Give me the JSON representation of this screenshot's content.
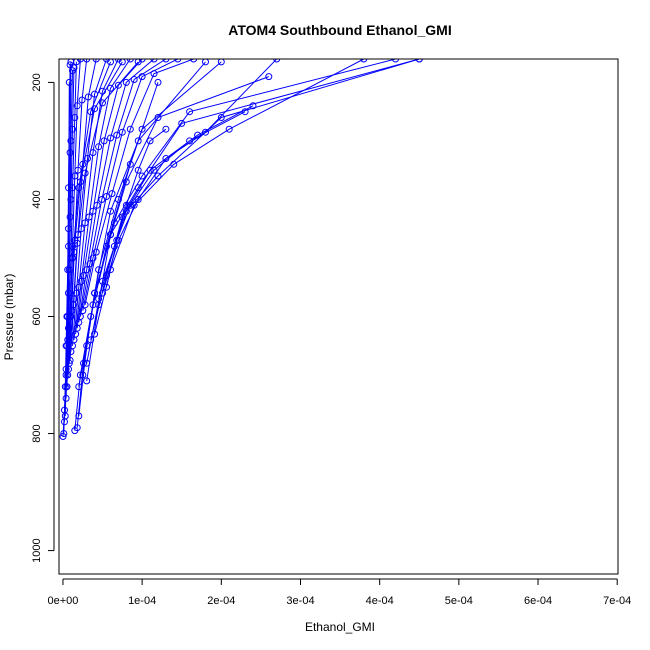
{
  "chart_data": {
    "type": "line",
    "title": "ATOM4 Southbound Ethanol_GMI",
    "xlabel": "Ethanol_GMI",
    "ylabel": "Pressure (mbar)",
    "xlim": [
      -5e-06,
      0.000701
    ],
    "ylim": [
      1040,
      160
    ],
    "y_reversed": true,
    "markers": "open-circle",
    "grid": false,
    "legend": "none",
    "series_color": "#0000ff",
    "x_ticks": [
      0,
      0.0001,
      0.0002,
      0.0003,
      0.0004,
      0.0005,
      0.0006,
      0.0007
    ],
    "x_tick_labels": [
      "0e+00",
      "1e-04",
      "2e-04",
      "3e-04",
      "4e-04",
      "5e-04",
      "6e-04",
      "7e-04"
    ],
    "y_ticks": [
      200,
      400,
      600,
      800,
      1000
    ],
    "y_tick_labels": [
      "200",
      "400",
      "600",
      "800",
      "1000"
    ],
    "series": [
      {
        "x": [
          0.0,
          2e-06,
          4e-06,
          5e-06,
          7e-06,
          8e-06
        ],
        "y": [
          805,
          760,
          700,
          600,
          450,
          200
        ]
      },
      {
        "x": [
          1e-06,
          3e-06,
          4e-06,
          6e-06,
          7e-06,
          9e-06
        ],
        "y": [
          800,
          720,
          650,
          520,
          380,
          170
        ]
      },
      {
        "x": [
          2e-06,
          4e-06,
          6e-06,
          7e-06,
          9e-06,
          1e-05
        ],
        "y": [
          780,
          690,
          600,
          480,
          320,
          165
        ]
      },
      {
        "x": [
          3e-06,
          5e-06,
          7e-06,
          9e-06,
          1e-05,
          1.2e-05
        ],
        "y": [
          770,
          650,
          560,
          430,
          300,
          180
        ]
      },
      {
        "x": [
          4e-06,
          6e-06,
          8e-06,
          1e-05,
          1.2e-05,
          1.4e-05
        ],
        "y": [
          740,
          640,
          520,
          400,
          280,
          175
        ]
      },
      {
        "x": [
          5e-06,
          7e-06,
          1e-05,
          1.2e-05,
          1.5e-05,
          1.7e-05
        ],
        "y": [
          720,
          620,
          500,
          380,
          260,
          165
        ]
      },
      {
        "x": [
          6e-06,
          9e-06,
          1.2e-05,
          1.5e-05,
          1.8e-05,
          2.2e-05
        ],
        "y": [
          700,
          600,
          480,
          360,
          240,
          160
        ]
      },
      {
        "x": [
          8e-06,
          1.1e-05,
          1.5e-05,
          1.9e-05,
          2.4e-05,
          3e-05
        ],
        "y": [
          680,
          590,
          470,
          350,
          230,
          160
        ]
      },
      {
        "x": [
          1e-05,
          1.4e-05,
          1.9e-05,
          2.5e-05,
          3.2e-05,
          4.2e-05
        ],
        "y": [
          660,
          570,
          460,
          340,
          225,
          160
        ]
      },
      {
        "x": [
          1.2e-05,
          1.7e-05,
          2.3e-05,
          3.1e-05,
          4e-05,
          5.5e-05
        ],
        "y": [
          650,
          560,
          450,
          330,
          220,
          160
        ]
      },
      {
        "x": [
          1.4e-05,
          2e-05,
          2.8e-05,
          3.8e-05,
          5e-05,
          7e-05
        ],
        "y": [
          640,
          550,
          440,
          320,
          215,
          160
        ]
      },
      {
        "x": [
          1.6e-05,
          2.3e-05,
          3.3e-05,
          4.5e-05,
          6e-05,
          8.5e-05
        ],
        "y": [
          630,
          540,
          430,
          310,
          210,
          160
        ]
      },
      {
        "x": [
          1.8e-05,
          2.6e-05,
          3.8e-05,
          5.2e-05,
          7e-05,
          0.0001
        ],
        "y": [
          620,
          530,
          420,
          300,
          205,
          160
        ]
      },
      {
        "x": [
          2e-05,
          3e-05,
          4.3e-05,
          6e-05,
          8e-05,
          0.000115
        ],
        "y": [
          610,
          520,
          410,
          295,
          200,
          160
        ]
      },
      {
        "x": [
          2.2e-05,
          3.4e-05,
          4.9e-05,
          6.8e-05,
          9e-05,
          0.00013
        ],
        "y": [
          600,
          510,
          400,
          290,
          195,
          160
        ]
      },
      {
        "x": [
          2.5e-05,
          3.8e-05,
          5.5e-05,
          7.5e-05,
          0.0001,
          0.000145
        ],
        "y": [
          590,
          500,
          395,
          285,
          190,
          160
        ]
      },
      {
        "x": [
          2.8e-05,
          4.2e-05,
          6.2e-05,
          8.5e-05,
          0.000115,
          0.000165
        ],
        "y": [
          580,
          490,
          390,
          280,
          185,
          160
        ]
      },
      {
        "x": [
          1.8e-05,
          2.6e-05,
          4e-05,
          6e-05,
          9.5e-05,
          0.00018
        ],
        "y": [
          790,
          680,
          560,
          420,
          300,
          165
        ]
      },
      {
        "x": [
          1.5e-05,
          2.2e-05,
          3.5e-05,
          5.5e-05,
          8.5e-05,
          0.00012
        ],
        "y": [
          795,
          700,
          600,
          480,
          340,
          200
        ]
      },
      {
        "x": [
          2e-05,
          3e-05,
          4.5e-05,
          7e-05,
          0.0001,
          0.0002
        ],
        "y": [
          770,
          650,
          520,
          400,
          280,
          165
        ]
      },
      {
        "x": [
          3e-05,
          4.5e-05,
          6e-05,
          8e-05,
          0.00012,
          0.00026
        ],
        "y": [
          710,
          580,
          460,
          370,
          260,
          190
        ]
      },
      {
        "x": [
          2.5e-05,
          4e-05,
          6.5e-05,
          0.0001,
          0.00016,
          0.00042
        ],
        "y": [
          700,
          560,
          440,
          360,
          250,
          160
        ]
      },
      {
        "x": [
          2e-05,
          3.8e-05,
          6e-05,
          9.5e-05,
          0.00015,
          0.00045
        ],
        "y": [
          720,
          580,
          460,
          380,
          270,
          160
        ]
      },
      {
        "x": [
          3e-05,
          5e-05,
          8e-05,
          0.00012,
          0.0002,
          0.00045
        ],
        "y": [
          680,
          540,
          420,
          360,
          260,
          160
        ]
      },
      {
        "x": [
          4e-05,
          6e-05,
          9e-05,
          0.00014,
          0.00021,
          0.00038
        ],
        "y": [
          630,
          520,
          410,
          340,
          280,
          160
        ]
      },
      {
        "x": [
          3.5e-05,
          5.5e-05,
          7.5e-05,
          0.00011,
          0.00017,
          0.00024
        ],
        "y": [
          640,
          530,
          430,
          350,
          290,
          240
        ]
      },
      {
        "x": [
          4.5e-05,
          6.5e-05,
          8.5e-05,
          0.000115,
          0.00016,
          0.00023
        ],
        "y": [
          570,
          480,
          410,
          350,
          300,
          250
        ]
      },
      {
        "x": [
          5e-05,
          7e-05,
          9.5e-05,
          0.00013,
          0.00018,
          0.00027
        ],
        "y": [
          560,
          470,
          400,
          330,
          285,
          160
        ]
      },
      {
        "x": [
          5.5e-05,
          6.8e-05,
          8e-05,
          9.5e-05,
          0.00011,
          0.00013
        ],
        "y": [
          550,
          470,
          410,
          350,
          300,
          280
        ]
      },
      {
        "x": [
          5e-06,
          8e-06,
          1.2e-05,
          2e-05,
          3.5e-05,
          6e-05
        ],
        "y": [
          720,
          620,
          500,
          380,
          250,
          165
        ]
      },
      {
        "x": [
          7e-06,
          1e-05,
          1.4e-05,
          2.2e-05,
          4e-05,
          7.5e-05
        ],
        "y": [
          690,
          600,
          490,
          370,
          245,
          165
        ]
      },
      {
        "x": [
          9e-06,
          1.3e-05,
          1.8e-05,
          2.8e-05,
          5e-05,
          9.5e-05
        ],
        "y": [
          675,
          580,
          475,
          355,
          235,
          165
        ]
      }
    ]
  }
}
